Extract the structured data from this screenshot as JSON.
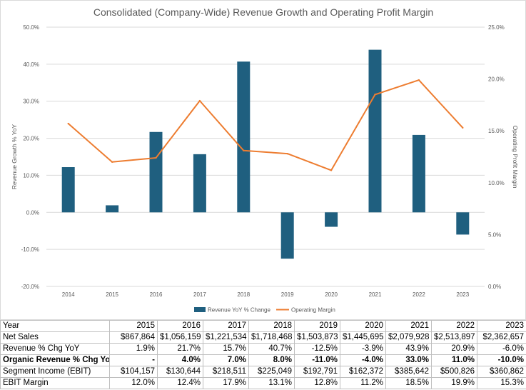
{
  "chart_data": {
    "type": "bar+line",
    "title": "Consolidated (Company-Wide) Revenue Growth and Operating Profit Margin",
    "categories": [
      "2014",
      "2015",
      "2016",
      "2017",
      "2018",
      "2019",
      "2020",
      "2021",
      "2022",
      "2023"
    ],
    "series": [
      {
        "name": "Revenue YoY % Change",
        "type": "bar",
        "axis": "left",
        "color": "#1f5f7f",
        "values": [
          12.2,
          1.9,
          21.7,
          15.7,
          40.7,
          -12.5,
          -3.9,
          43.9,
          20.9,
          -6.0
        ]
      },
      {
        "name": "Operating Margin",
        "type": "line",
        "axis": "right",
        "color": "#ed7d31",
        "values": [
          15.7,
          12.0,
          12.4,
          17.9,
          13.1,
          12.8,
          11.2,
          18.5,
          19.9,
          15.3
        ]
      }
    ],
    "ylabel": "Revenue Growth % YoY",
    "y2label": "Operating Profit Margin",
    "ylim": [
      -20,
      50
    ],
    "y2lim": [
      0,
      25
    ],
    "yticks": [
      "50.0%",
      "40.0%",
      "30.0%",
      "20.0%",
      "10.0%",
      "0.0%",
      "-10.0%",
      "-20.0%"
    ],
    "y2ticks": [
      "25.0%",
      "20.0%",
      "15.0%",
      "10.0%",
      "5.0%",
      "0.0%"
    ],
    "grid": true,
    "legend": "bottom"
  },
  "table": {
    "header": [
      "Year",
      "2015",
      "2016",
      "2017",
      "2018",
      "2019",
      "2020",
      "2021",
      "2022",
      "2023"
    ],
    "rows": [
      {
        "label": "Net Sales",
        "bold": false,
        "cells": [
          "$867,864",
          "$1,056,159",
          "$1,221,534",
          "$1,718,468",
          "$1,503,873",
          "$1,445,695",
          "$2,079,928",
          "$2,513,897",
          "$2,362,657"
        ]
      },
      {
        "label": "Revenue % Chg YoY",
        "bold": false,
        "cells": [
          "1.9%",
          "21.7%",
          "15.7%",
          "40.7%",
          "-12.5%",
          "-3.9%",
          "43.9%",
          "20.9%",
          "-6.0%"
        ]
      },
      {
        "label": "Organic Revenue % Chg YoY",
        "bold": true,
        "cells": [
          "-",
          "4.0%",
          "7.0%",
          "8.0%",
          "-11.0%",
          "-4.0%",
          "33.0%",
          "11.0%",
          "-10.0%"
        ]
      },
      {
        "label": "Segment Income (EBIT)",
        "bold": false,
        "cells": [
          "$104,157",
          "$130,644",
          "$218,511",
          "$225,049",
          "$192,791",
          "$162,372",
          "$385,642",
          "$500,826",
          "$360,862"
        ]
      },
      {
        "label": "EBIT Margin",
        "bold": false,
        "cells": [
          "12.0%",
          "12.4%",
          "17.9%",
          "13.1%",
          "12.8%",
          "11.2%",
          "18.5%",
          "19.9%",
          "15.3%"
        ]
      }
    ]
  }
}
